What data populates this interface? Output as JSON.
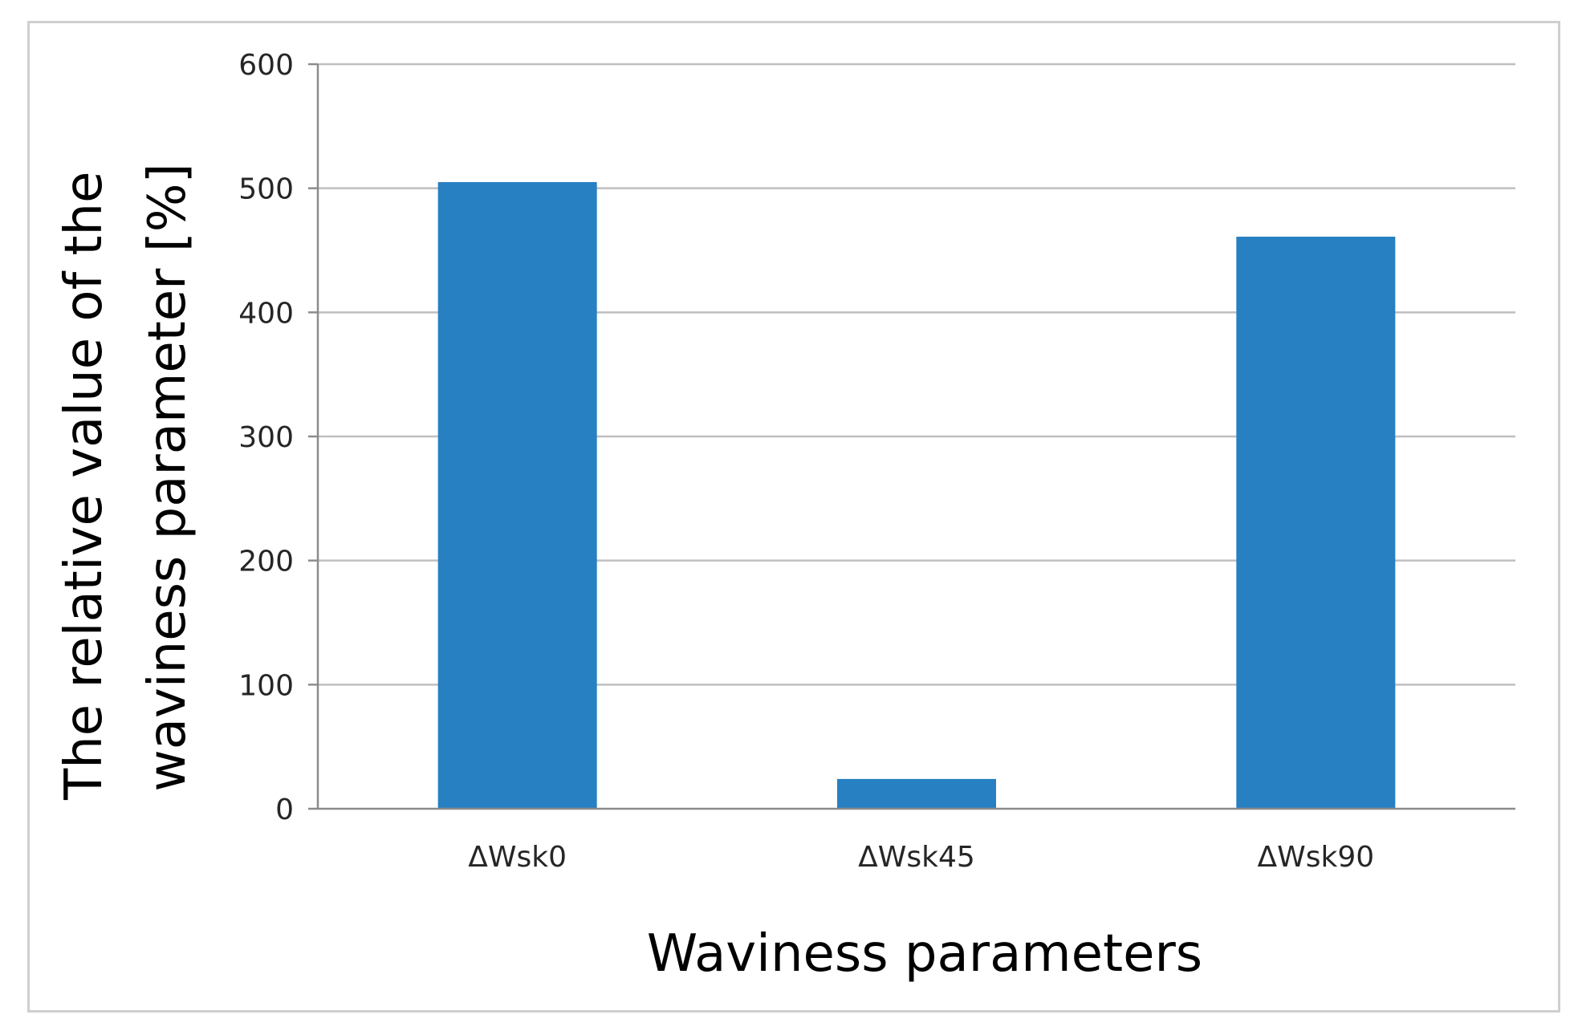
{
  "chart_data": {
    "type": "bar",
    "categories": [
      "ΔWsk0",
      "ΔWsk45",
      "ΔWsk90"
    ],
    "values": [
      505,
      24,
      461
    ],
    "xlabel": "Waviness parameters",
    "ylabel": "The relative value of the waviness parameter [%]",
    "ylabel_lines": [
      "The relative value of the",
      "waviness parameter [%]"
    ],
    "ylim": [
      0,
      600
    ],
    "yticks": [
      0,
      100,
      200,
      300,
      400,
      500,
      600
    ],
    "grid": true,
    "legend": "none",
    "colors": {
      "bar": "#2680c2",
      "grid": "#bfbfbf",
      "axis": "#8c8c8c"
    }
  }
}
